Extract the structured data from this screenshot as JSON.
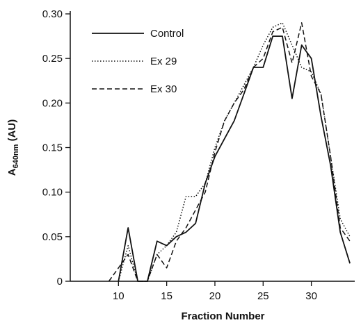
{
  "chart_data": {
    "type": "line",
    "xlabel": "Fraction Number",
    "ylabel": {
      "main": "A",
      "subscript": "640nm",
      "unit": " (AU)"
    },
    "xlim": [
      5,
      34.5
    ],
    "ylim": [
      0,
      0.3
    ],
    "x_ticks": [
      10,
      15,
      20,
      25,
      30
    ],
    "x_tick_labels": [
      "10",
      "15",
      "20",
      "25",
      "30"
    ],
    "y_ticks": [
      0,
      0.05,
      0.1,
      0.15,
      0.2,
      0.25,
      0.3
    ],
    "y_tick_labels": [
      "0",
      "0.05",
      "0.10",
      "0.15",
      "0.20",
      "0.25",
      "0.30"
    ],
    "grid": false,
    "legend_position": "top-left",
    "series": [
      {
        "name": "Control",
        "style": "solid",
        "x": [
          10,
          11,
          12,
          13,
          14,
          15,
          16,
          17,
          18,
          19,
          20,
          21,
          22,
          23,
          24,
          25,
          26,
          27,
          28,
          29,
          30,
          31,
          32,
          33,
          34
        ],
        "y": [
          0,
          0.06,
          0,
          0,
          0.045,
          0.04,
          0.05,
          0.055,
          0.065,
          0.11,
          0.14,
          0.16,
          0.18,
          0.21,
          0.24,
          0.24,
          0.275,
          0.275,
          0.205,
          0.265,
          0.25,
          0.185,
          0.13,
          0.055,
          0.02
        ]
      },
      {
        "name": "Ex 29",
        "style": "dotted",
        "x": [
          10,
          11,
          12,
          13,
          14,
          15,
          16,
          17,
          18,
          19,
          20,
          21,
          22,
          23,
          24,
          25,
          26,
          27,
          28,
          29,
          30,
          31,
          32,
          33,
          34
        ],
        "y": [
          0,
          0.04,
          0,
          0,
          0.03,
          0.04,
          0.055,
          0.095,
          0.095,
          0.11,
          0.15,
          0.18,
          0.2,
          0.22,
          0.24,
          0.265,
          0.285,
          0.29,
          0.265,
          0.24,
          0.235,
          0.21,
          0.14,
          0.07,
          0.05
        ]
      },
      {
        "name": "Ex 30",
        "style": "dashed",
        "x": [
          9,
          10,
          11,
          12,
          13,
          14,
          15,
          16,
          17,
          18,
          19,
          20,
          21,
          22,
          23,
          24,
          25,
          26,
          27,
          28,
          29,
          30,
          31,
          32,
          33,
          34
        ],
        "y": [
          0,
          0.015,
          0.03,
          0,
          0,
          0.03,
          0.015,
          0.045,
          0.06,
          0.08,
          0.1,
          0.145,
          0.18,
          0.2,
          0.215,
          0.24,
          0.25,
          0.28,
          0.285,
          0.245,
          0.29,
          0.23,
          0.21,
          0.14,
          0.06,
          0.045
        ]
      }
    ]
  }
}
